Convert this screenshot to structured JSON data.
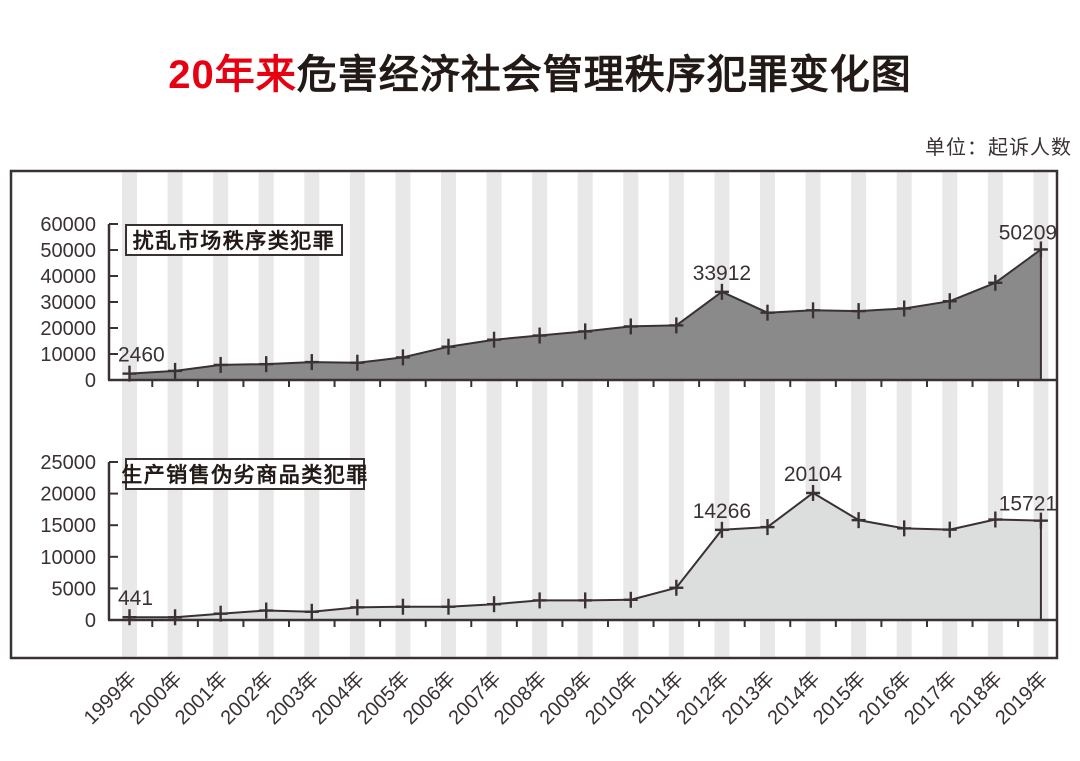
{
  "title": {
    "highlight": "20年来",
    "rest": "危害经济社会管理秩序犯罪变化图"
  },
  "unit_label": "单位：起诉人数",
  "colors": {
    "accent_red": "#e60012",
    "ink": "#3a3132",
    "area_dark": "#8a8a8a",
    "area_light": "#dcdddd",
    "stripe": "#e8e8e8",
    "background": "#ffffff"
  },
  "chart_data": [
    {
      "type": "area",
      "title": "扰乱市场秩序类犯罪",
      "categories": [
        "1999年",
        "2000年",
        "2001年",
        "2002年",
        "2003年",
        "2004年",
        "2005年",
        "2006年",
        "2007年",
        "2008年",
        "2009年",
        "2010年",
        "2011年",
        "2012年",
        "2013年",
        "2014年",
        "2015年",
        "2016年",
        "2017年",
        "2018年",
        "2019年"
      ],
      "values": [
        2460,
        3500,
        5800,
        6100,
        6900,
        6650,
        8700,
        12800,
        15500,
        17100,
        18700,
        20600,
        21000,
        33912,
        25900,
        26800,
        26500,
        27500,
        30300,
        37400,
        50209
      ],
      "xlabel": "",
      "ylabel": "",
      "ylim": [
        0,
        60000
      ],
      "ytick_step": 10000,
      "yticks": [
        0,
        10000,
        20000,
        30000,
        40000,
        50000,
        60000
      ],
      "marker": "plus",
      "fill": "dark",
      "grid": "vertical-stripes",
      "legend_position": "top-left-inside",
      "annotations": [
        {
          "category": "1999年",
          "text": "2460"
        },
        {
          "category": "2012年",
          "text": "33912"
        },
        {
          "category": "2019年",
          "text": "50209"
        }
      ]
    },
    {
      "type": "area",
      "title": "生产销售伪劣商品类犯罪",
      "categories": [
        "1999年",
        "2000年",
        "2001年",
        "2002年",
        "2003年",
        "2004年",
        "2005年",
        "2006年",
        "2007年",
        "2008年",
        "2009年",
        "2010年",
        "2011年",
        "2012年",
        "2013年",
        "2014年",
        "2015年",
        "2016年",
        "2017年",
        "2018年",
        "2019年"
      ],
      "values": [
        441,
        430,
        1000,
        1500,
        1300,
        2000,
        2100,
        2100,
        2500,
        3100,
        3100,
        3200,
        5100,
        14266,
        14700,
        20104,
        15800,
        14500,
        14300,
        15900,
        15721
      ],
      "xlabel": "",
      "ylabel": "",
      "ylim": [
        0,
        25000
      ],
      "ytick_step": 5000,
      "yticks": [
        0,
        5000,
        10000,
        15000,
        20000,
        25000
      ],
      "marker": "plus",
      "fill": "light",
      "grid": "vertical-stripes",
      "legend_position": "top-left-inside",
      "annotations": [
        {
          "category": "1999年",
          "text": "441"
        },
        {
          "category": "2012年",
          "text": "14266"
        },
        {
          "category": "2014年",
          "text": "20104"
        },
        {
          "category": "2019年",
          "text": "15721"
        }
      ]
    }
  ]
}
